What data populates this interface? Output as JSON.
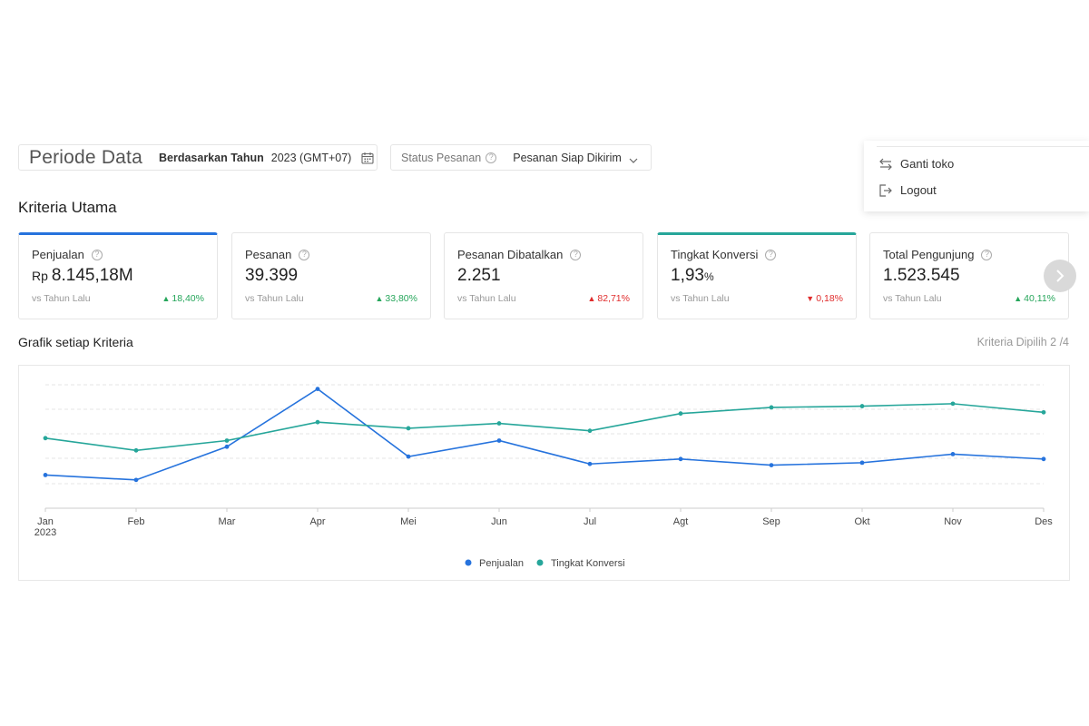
{
  "filters": {
    "periode_title": "Periode Data",
    "periode_type": "Berdasarkan Tahun",
    "periode_value": "2023 (GMT+07)",
    "status_label": "Status Pesanan",
    "status_value": "Pesanan Siap Dikirim"
  },
  "dropdown": {
    "items": [
      {
        "label": "Ganti toko",
        "icon": "switch-icon"
      },
      {
        "label": "Logout",
        "icon": "logout-icon"
      }
    ]
  },
  "kriteria": {
    "title": "Kriteria Utama",
    "cards": [
      {
        "label": "Penjualan",
        "prefix": "Rp",
        "value": "8.145,18M",
        "suffix": "",
        "vs": "vs Tahun Lalu",
        "change": "18,40%",
        "direction": "up",
        "selected": "blue"
      },
      {
        "label": "Pesanan",
        "prefix": "",
        "value": "39.399",
        "suffix": "",
        "vs": "vs Tahun Lalu",
        "change": "33,80%",
        "direction": "up",
        "selected": ""
      },
      {
        "label": "Pesanan Dibatalkan",
        "prefix": "",
        "value": "2.251",
        "suffix": "",
        "vs": "vs Tahun Lalu",
        "change": "82,71%",
        "direction": "up-red",
        "selected": ""
      },
      {
        "label": "Tingkat Konversi",
        "prefix": "",
        "value": "1,93",
        "suffix": "%",
        "vs": "vs Tahun Lalu",
        "change": "0,18%",
        "direction": "down",
        "selected": "green"
      },
      {
        "label": "Total Pengunjung",
        "prefix": "",
        "value": "1.523.545",
        "suffix": "",
        "vs": "vs Tahun Lalu",
        "change": "40,11%",
        "direction": "up",
        "selected": ""
      }
    ]
  },
  "grafik": {
    "title": "Grafik setiap Kriteria",
    "selected_text": "Kriteria Dipilih 2 /4"
  },
  "chart_data": {
    "type": "line",
    "categories": [
      "Jan",
      "Feb",
      "Mar",
      "Apr",
      "Mei",
      "Jun",
      "Jul",
      "Agt",
      "Sep",
      "Okt",
      "Nov",
      "Des"
    ],
    "year_label": "2023",
    "series": [
      {
        "name": "Penjualan",
        "color": "#2673dd",
        "values": [
          0.27,
          0.23,
          0.5,
          0.97,
          0.42,
          0.55,
          0.36,
          0.4,
          0.35,
          0.37,
          0.44,
          0.4
        ]
      },
      {
        "name": "Tingkat Konversi",
        "color": "#26a69a",
        "values": [
          0.57,
          0.47,
          0.55,
          0.7,
          0.65,
          0.69,
          0.63,
          0.77,
          0.82,
          0.83,
          0.85,
          0.78
        ]
      }
    ],
    "ylim": [
      0,
      1.1
    ],
    "grid": true,
    "legend": "bottom-center"
  }
}
